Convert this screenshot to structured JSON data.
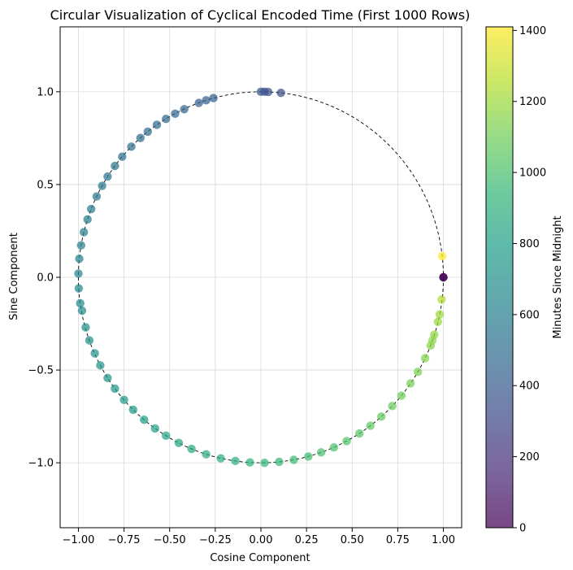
{
  "chart_data": {
    "type": "scatter",
    "title": "Circular Visualization of Cyclical Encoded Time (First 1000 Rows)",
    "xlabel": "Cosine Component",
    "ylabel": "Sine Component",
    "xlim": [
      -1.1,
      1.1
    ],
    "ylim": [
      -1.35,
      1.35
    ],
    "xticks": [
      -1.0,
      -0.75,
      -0.5,
      -0.25,
      0.0,
      0.25,
      0.5,
      0.75,
      1.0
    ],
    "xtick_labels": [
      "−1.00",
      "−0.75",
      "−0.50",
      "−0.25",
      "0.00",
      "0.25",
      "0.50",
      "0.75",
      "1.00"
    ],
    "yticks": [
      1.0,
      0.5,
      0.0,
      -0.5,
      -1.0
    ],
    "ytick_labels": [
      "1.0",
      "0.5",
      "0.0",
      "−0.5",
      "−1.0"
    ],
    "grid": true,
    "reference_circle": {
      "radius": 1,
      "style": "dashed",
      "color": "#000000"
    },
    "colorbar": {
      "label": "Minutes Since Midnight",
      "colormap": "viridis",
      "range": [
        0,
        1410
      ],
      "ticks": [
        0,
        200,
        400,
        600,
        800,
        1000,
        1200,
        1400
      ],
      "tick_labels": [
        "0",
        "200",
        "400",
        "600",
        "800",
        "1000",
        "1200",
        "1400"
      ]
    },
    "point_colors": [
      "#440154",
      "#482878",
      "#3e4989",
      "#31688e",
      "#26828e",
      "#1f9e89",
      "#35b779",
      "#6ece58",
      "#b5de2b",
      "#fde725"
    ],
    "series": [
      {
        "points": [
          {
            "x": 1.0,
            "y": 0.0,
            "minutes": 0
          },
          {
            "x": 1.0,
            "y": 0.0,
            "minutes": 0
          },
          {
            "x": 0.993,
            "y": 0.114,
            "minutes": 1420
          },
          {
            "x": 0.11,
            "y": 0.994,
            "minutes": 336
          },
          {
            "x": 0.04,
            "y": 0.999,
            "minutes": 351
          },
          {
            "x": 0.02,
            "y": 1.0,
            "minutes": 355
          },
          {
            "x": 0.0,
            "y": 1.0,
            "minutes": 360
          },
          {
            "x": -0.26,
            "y": 0.966,
            "minutes": 420
          },
          {
            "x": -0.3,
            "y": 0.954,
            "minutes": 428
          },
          {
            "x": -0.34,
            "y": 0.94,
            "minutes": 436
          },
          {
            "x": -0.42,
            "y": 0.906,
            "minutes": 452
          },
          {
            "x": -0.47,
            "y": 0.882,
            "minutes": 462
          },
          {
            "x": -0.52,
            "y": 0.854,
            "minutes": 472
          },
          {
            "x": -0.57,
            "y": 0.822,
            "minutes": 482
          },
          {
            "x": -0.62,
            "y": 0.785,
            "minutes": 493
          },
          {
            "x": -0.66,
            "y": 0.751,
            "minutes": 502
          },
          {
            "x": -0.71,
            "y": 0.704,
            "minutes": 514
          },
          {
            "x": -0.76,
            "y": 0.65,
            "minutes": 526
          },
          {
            "x": -0.8,
            "y": 0.6,
            "minutes": 537
          },
          {
            "x": -0.84,
            "y": 0.543,
            "minutes": 549
          },
          {
            "x": -0.87,
            "y": 0.493,
            "minutes": 559
          },
          {
            "x": -0.9,
            "y": 0.436,
            "minutes": 569
          },
          {
            "x": -0.93,
            "y": 0.368,
            "minutes": 581
          },
          {
            "x": -0.95,
            "y": 0.312,
            "minutes": 591
          },
          {
            "x": -0.97,
            "y": 0.243,
            "minutes": 602
          },
          {
            "x": -0.985,
            "y": 0.172,
            "minutes": 614
          },
          {
            "x": -0.995,
            "y": 0.1,
            "minutes": 625
          },
          {
            "x": -1.0,
            "y": 0.02,
            "minutes": 637
          },
          {
            "x": -0.998,
            "y": -0.06,
            "minutes": 654
          },
          {
            "x": -0.99,
            "y": -0.14,
            "minutes": 668
          },
          {
            "x": -0.98,
            "y": -0.18,
            "minutes": 679
          },
          {
            "x": -0.96,
            "y": -0.27,
            "minutes": 690
          },
          {
            "x": -0.94,
            "y": -0.34,
            "minutes": 699
          },
          {
            "x": -0.91,
            "y": -0.41,
            "minutes": 714
          },
          {
            "x": -0.88,
            "y": -0.475,
            "minutes": 728
          },
          {
            "x": -0.84,
            "y": -0.543,
            "minutes": 741
          },
          {
            "x": -0.8,
            "y": -0.6,
            "minutes": 752
          },
          {
            "x": -0.75,
            "y": -0.661,
            "minutes": 765
          },
          {
            "x": -0.7,
            "y": -0.714,
            "minutes": 778
          },
          {
            "x": -0.64,
            "y": -0.768,
            "minutes": 792
          },
          {
            "x": -0.58,
            "y": -0.815,
            "minutes": 805
          },
          {
            "x": -0.52,
            "y": -0.854,
            "minutes": 818
          },
          {
            "x": -0.45,
            "y": -0.893,
            "minutes": 833
          },
          {
            "x": -0.38,
            "y": -0.925,
            "minutes": 848
          },
          {
            "x": -0.3,
            "y": -0.954,
            "minutes": 864
          },
          {
            "x": -0.22,
            "y": -0.976,
            "minutes": 880
          },
          {
            "x": -0.14,
            "y": -0.99,
            "minutes": 896
          },
          {
            "x": -0.06,
            "y": -0.998,
            "minutes": 912
          },
          {
            "x": 0.02,
            "y": -1.0,
            "minutes": 925
          },
          {
            "x": 0.1,
            "y": -0.995,
            "minutes": 943
          },
          {
            "x": 0.18,
            "y": -0.984,
            "minutes": 959
          },
          {
            "x": 0.26,
            "y": -0.966,
            "minutes": 975
          },
          {
            "x": 0.33,
            "y": -0.944,
            "minutes": 990
          },
          {
            "x": 0.4,
            "y": -0.917,
            "minutes": 1004
          },
          {
            "x": 0.47,
            "y": -0.883,
            "minutes": 1020
          },
          {
            "x": 0.54,
            "y": -0.842,
            "minutes": 1035
          },
          {
            "x": 0.6,
            "y": -0.8,
            "minutes": 1050
          },
          {
            "x": 0.66,
            "y": -0.751,
            "minutes": 1065
          },
          {
            "x": 0.72,
            "y": -0.694,
            "minutes": 1080
          },
          {
            "x": 0.77,
            "y": -0.638,
            "minutes": 1094
          },
          {
            "x": 0.82,
            "y": -0.572,
            "minutes": 1110
          },
          {
            "x": 0.86,
            "y": -0.51,
            "minutes": 1124
          },
          {
            "x": 0.9,
            "y": -0.436,
            "minutes": 1140
          },
          {
            "x": 0.93,
            "y": -0.368,
            "minutes": 1155
          },
          {
            "x": 0.94,
            "y": -0.34,
            "minutes": 1161
          },
          {
            "x": 0.95,
            "y": -0.31,
            "minutes": 1170
          },
          {
            "x": 0.97,
            "y": -0.24,
            "minutes": 1190
          },
          {
            "x": 0.98,
            "y": -0.2,
            "minutes": 1200
          },
          {
            "x": 0.99,
            "y": -0.12,
            "minutes": 1240
          }
        ]
      }
    ]
  }
}
